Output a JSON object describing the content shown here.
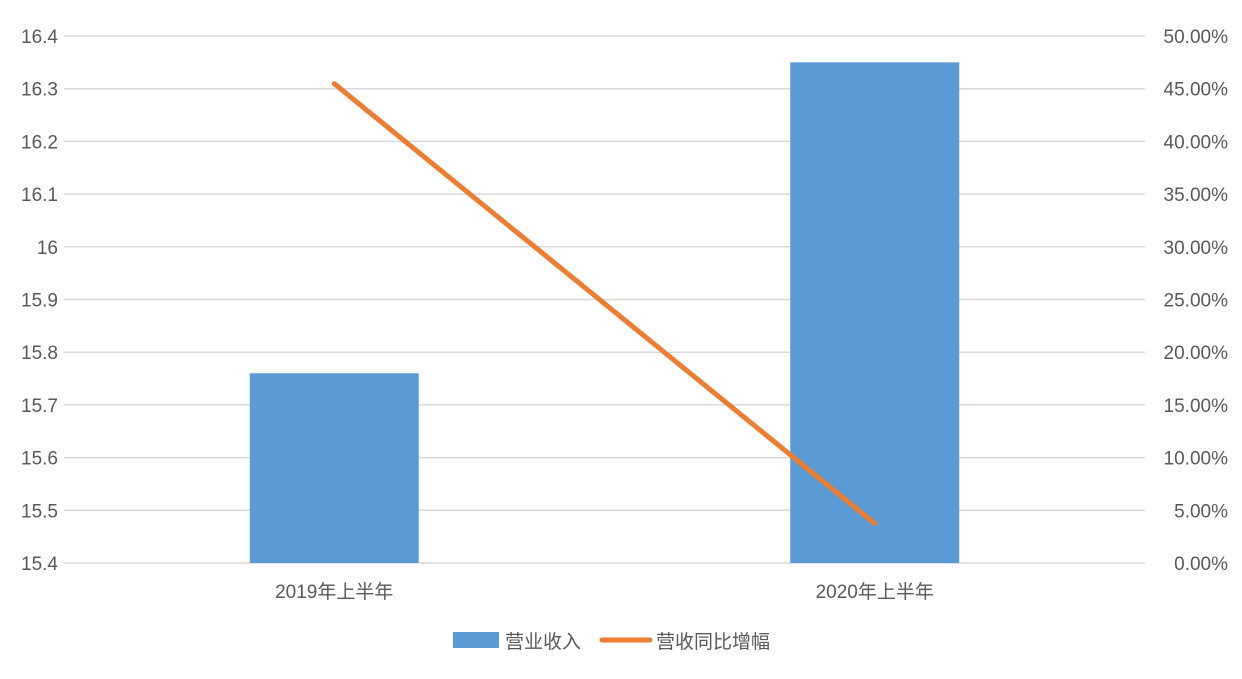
{
  "chart_data": {
    "type": "bar",
    "categories": [
      "2019年上半年",
      "2020年上半年"
    ],
    "series": [
      {
        "name": "营业收入",
        "type": "bar",
        "axis": "left",
        "values": [
          15.76,
          16.35
        ],
        "color": "#5B9BD5"
      },
      {
        "name": "营收同比增幅",
        "type": "line",
        "axis": "right",
        "values": [
          0.4547,
          0.0375
        ],
        "color": "#ED7D31"
      }
    ],
    "y_left": {
      "ylim": [
        15.4,
        16.4
      ],
      "ticks": [
        15.4,
        15.5,
        15.6,
        15.7,
        15.8,
        15.9,
        16,
        16.1,
        16.2,
        16.3,
        16.4
      ],
      "tick_labels": [
        "15.4",
        "15.5",
        "15.6",
        "15.7",
        "15.8",
        "15.9",
        "16",
        "16.1",
        "16.2",
        "16.3",
        "16.4"
      ]
    },
    "y_right": {
      "ylim": [
        0,
        0.5
      ],
      "ticks": [
        0,
        0.05,
        0.1,
        0.15,
        0.2,
        0.25,
        0.3,
        0.35,
        0.4,
        0.45,
        0.5
      ],
      "tick_labels": [
        "0.00%",
        "5.00%",
        "10.00%",
        "15.00%",
        "20.00%",
        "25.00%",
        "30.00%",
        "35.00%",
        "40.00%",
        "45.00%",
        "50.00%"
      ]
    },
    "grid": true,
    "gridline_color": "#D9D9D9",
    "legend_position": "bottom"
  }
}
